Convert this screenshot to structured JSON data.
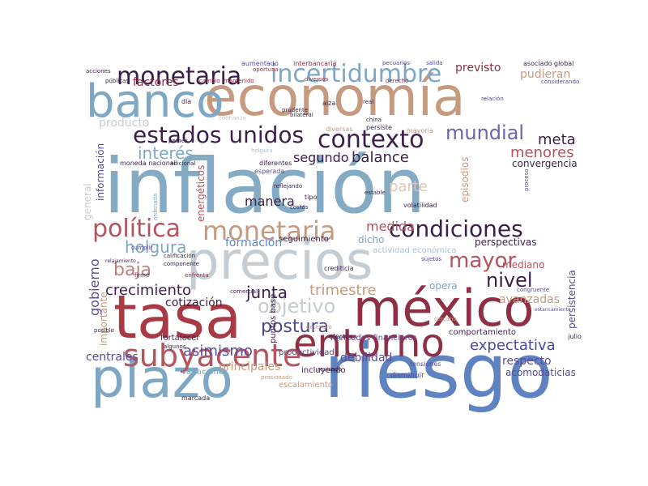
{
  "palette": {
    "dark_plum": "#3b1f4a",
    "wine": "#8e2f45",
    "rose": "#b5535f",
    "tan": "#c59a7f",
    "steel_blue": "#7da7c4",
    "royal_blue": "#6284c2",
    "indigo": "#5a4a9a",
    "silver": "#c5ccd2",
    "light_tan": "#dcc6b8",
    "light_blue": "#a9c3d8"
  },
  "words": [
    {
      "text": "inflación",
      "color": "#85abc4"
    },
    {
      "text": "riesgo",
      "color": "#5f82c0"
    },
    {
      "text": "economía",
      "color": "#c59a7f"
    },
    {
      "text": "tasa",
      "color": "#a83a45"
    },
    {
      "text": "méxico",
      "color": "#8e2f45"
    },
    {
      "text": "precios",
      "color": "#c5ccd2"
    },
    {
      "text": "plazo",
      "color": "#7da7c4"
    },
    {
      "text": "banco",
      "color": "#7da7c4"
    },
    {
      "text": "entorno",
      "color": "#8e2f45"
    },
    {
      "text": "subyacente",
      "color": "#b5535f"
    },
    {
      "text": "monetaria",
      "color": "#3b1f4a"
    },
    {
      "text": "política",
      "color": "#b5535f"
    },
    {
      "text": "condiciones",
      "color": "#3b1f4a"
    },
    {
      "text": "contexto",
      "color": "#3b1f4a"
    },
    {
      "text": "estados unidos",
      "color": "#3b1f4a"
    },
    {
      "text": "incertidumbre",
      "color": "#7da7c4"
    },
    {
      "text": "mayor",
      "color": "#b5535f"
    },
    {
      "text": "mundial",
      "color": "#6d63b0"
    },
    {
      "text": "monetaria",
      "color": "#c59a7f"
    },
    {
      "text": "objetivo",
      "color": "#c5ccd2"
    },
    {
      "text": "nivel",
      "color": "#3b1f4a"
    },
    {
      "text": "holgura",
      "color": "#7da7c4"
    },
    {
      "text": "baja",
      "color": "#c08080"
    },
    {
      "text": "interés",
      "color": "#7da7c4"
    },
    {
      "text": "junta",
      "color": "#3b1f4a"
    },
    {
      "text": "crecimiento",
      "color": "#3b1f4a"
    },
    {
      "text": "postura",
      "color": "#4a4a8a"
    },
    {
      "text": "expectativa",
      "color": "#4a4a9a"
    },
    {
      "text": "asimismo",
      "color": "#5a4a9a"
    },
    {
      "text": "trimestre",
      "color": "#c59a7f"
    },
    {
      "text": "segundo",
      "color": "#3b1f4a"
    },
    {
      "text": "balance",
      "color": "#3b1f4a"
    },
    {
      "text": "meta",
      "color": "#3b1f4a"
    },
    {
      "text": "menores",
      "color": "#b5535f"
    },
    {
      "text": "previsto",
      "color": "#8e2f45"
    },
    {
      "text": "pudieran",
      "color": "#c59a7f"
    },
    {
      "text": "factores",
      "color": "#8e2f45"
    },
    {
      "text": "medida",
      "color": "#b5535f"
    },
    {
      "text": "parte",
      "color": "#dcc6b8"
    },
    {
      "text": "gobierno",
      "color": "#5a4a9a"
    },
    {
      "text": "manera",
      "color": "#3b1f4a"
    },
    {
      "text": "formación",
      "color": "#6284c2"
    },
    {
      "text": "cotización",
      "color": "#3b1f4a"
    },
    {
      "text": "respecto",
      "color": "#5a4a9a"
    },
    {
      "text": "principales",
      "color": "#c59a7f"
    },
    {
      "text": "centrales",
      "color": "#5a4a9a"
    },
    {
      "text": "debilidad",
      "color": "#5a4a9a"
    },
    {
      "text": "producto",
      "color": "#c5ccd2"
    },
    {
      "text": "convergencia",
      "color": "#3b1f4a"
    },
    {
      "text": "perspectivas",
      "color": "#3b1f4a"
    },
    {
      "text": "mediano",
      "color": "#b5535f"
    },
    {
      "text": "avanzadas",
      "color": "#c59a7f"
    },
    {
      "text": "opera",
      "color": "#7da7c4"
    },
    {
      "text": "episodios",
      "color": "#c59a7f"
    },
    {
      "text": "general",
      "color": "#c5ccd2"
    },
    {
      "text": "información",
      "color": "#5a4a9a"
    },
    {
      "text": "importante",
      "color": "#c59a7f"
    },
    {
      "text": "energéticos",
      "color": "#b5535f"
    },
    {
      "text": "persistencia",
      "color": "#5a4a9a"
    },
    {
      "text": "comportamiento",
      "color": "#3b1f4a"
    },
    {
      "text": "seguimiento",
      "color": "#3b1f4a"
    },
    {
      "text": "dicho",
      "color": "#7da7c4"
    },
    {
      "text": "actividad económica",
      "color": "#a9c3d8"
    },
    {
      "text": "mercados financieros",
      "color": "#5a4a9a"
    },
    {
      "text": "productividad",
      "color": "#5a4a9a"
    },
    {
      "text": "puntos base",
      "color": "#3b1f4a"
    },
    {
      "text": "incluyendo",
      "color": "#3b1f4a"
    },
    {
      "text": "acomodaticias",
      "color": "#5a4a9a"
    },
    {
      "text": "fortalecer",
      "color": "#3b1f4a"
    },
    {
      "text": "variaciones",
      "color": "#7da7c4"
    },
    {
      "text": "escalamiento",
      "color": "#c59a7f"
    },
    {
      "text": "aumentado",
      "color": "#5a4a9a"
    },
    {
      "text": "interbancaria",
      "color": "#8e2f45"
    },
    {
      "text": "asociado global",
      "color": "#3b1f4a"
    },
    {
      "text": "mantenido",
      "color": "#8e2f45"
    },
    {
      "text": "cambio",
      "color": "#8e2f45"
    },
    {
      "text": "alza",
      "color": "#3b1f4a"
    },
    {
      "text": "moneda nacional",
      "color": "#3b1f4a"
    },
    {
      "text": "adicional",
      "color": "#3b1f4a"
    },
    {
      "text": "diferentes",
      "color": "#3b1f4a"
    },
    {
      "text": "esperada",
      "color": "#5a4a9a"
    },
    {
      "text": "reflejando",
      "color": "#3b1f4a"
    },
    {
      "text": "volatilidad",
      "color": "#3b1f4a"
    },
    {
      "text": "estable",
      "color": "#3b1f4a"
    },
    {
      "text": "disminuir",
      "color": "#5a4a9a"
    },
    {
      "text": "mayoría",
      "color": "#c59a7f"
    },
    {
      "text": "persiste",
      "color": "#3b1f4a"
    },
    {
      "text": "diversas",
      "color": "#c59a7f"
    },
    {
      "text": "calificación",
      "color": "#3b1f4a"
    },
    {
      "text": "componente",
      "color": "#3b1f4a"
    },
    {
      "text": "enfrenta",
      "color": "#8e2f45"
    },
    {
      "text": "tipo",
      "color": "#3b1f4a"
    },
    {
      "text": "efectos",
      "color": "#3b1f4a"
    },
    {
      "text": "tensiones",
      "color": "#5a4a9a"
    },
    {
      "text": "marcada",
      "color": "#3b1f4a"
    },
    {
      "text": "congruente",
      "color": "#5a4a9a"
    },
    {
      "text": "julio",
      "color": "#3b1f4a"
    },
    {
      "text": "sujetos",
      "color": "#5a4a9a"
    },
    {
      "text": "crediticia",
      "color": "#3b1f4a"
    },
    {
      "text": "acciones",
      "color": "#3b1f4a"
    },
    {
      "text": "públicas",
      "color": "#3b1f4a"
    },
    {
      "text": "pemex",
      "color": "#3b1f4a"
    },
    {
      "text": "día",
      "color": "#3b1f4a"
    },
    {
      "text": "relación",
      "color": "#5a4a9a"
    },
    {
      "text": "derecho",
      "color": "#8e2f45"
    },
    {
      "text": "considerando",
      "color": "#5a4a9a"
    },
    {
      "text": "holgura",
      "color": "#a9c3d8"
    },
    {
      "text": "ordenada",
      "color": "#7da7c4"
    },
    {
      "text": "relajamiento",
      "color": "#3b1f4a"
    },
    {
      "text": "posible",
      "color": "#3b1f4a"
    },
    {
      "text": "algunos",
      "color": "#3b1f4a"
    },
    {
      "text": "revisado",
      "color": "#3b1f4a"
    },
    {
      "text": "presionado",
      "color": "#c59a7f"
    },
    {
      "text": "firme",
      "color": "#3b1f4a"
    },
    {
      "text": "comercial",
      "color": "#3b1f4a"
    },
    {
      "text": "cumplir",
      "color": "#5a4a9a"
    },
    {
      "text": "cercano",
      "color": "#c59a7f"
    },
    {
      "text": "estancamiento",
      "color": "#5a4a9a"
    },
    {
      "text": "proceso",
      "color": "#5a4a9a"
    },
    {
      "text": "deterioro",
      "color": "#c59a7f"
    },
    {
      "text": "costos",
      "color": "#3b1f4a"
    },
    {
      "text": "bilateral",
      "color": "#3b1f4a"
    },
    {
      "text": "prudente",
      "color": "#3b1f4a"
    },
    {
      "text": "real",
      "color": "#3b1f4a"
    },
    {
      "text": "china",
      "color": "#3b1f4a"
    },
    {
      "text": "oportuna",
      "color": "#8e2f45"
    },
    {
      "text": "pecuarios",
      "color": "#5a4a9a"
    },
    {
      "text": "salida",
      "color": "#5a4a9a"
    },
    {
      "text": "diversos",
      "color": "#8e2f45"
    },
    {
      "text": "confianza",
      "color": "#c5ccd2"
    }
  ]
}
